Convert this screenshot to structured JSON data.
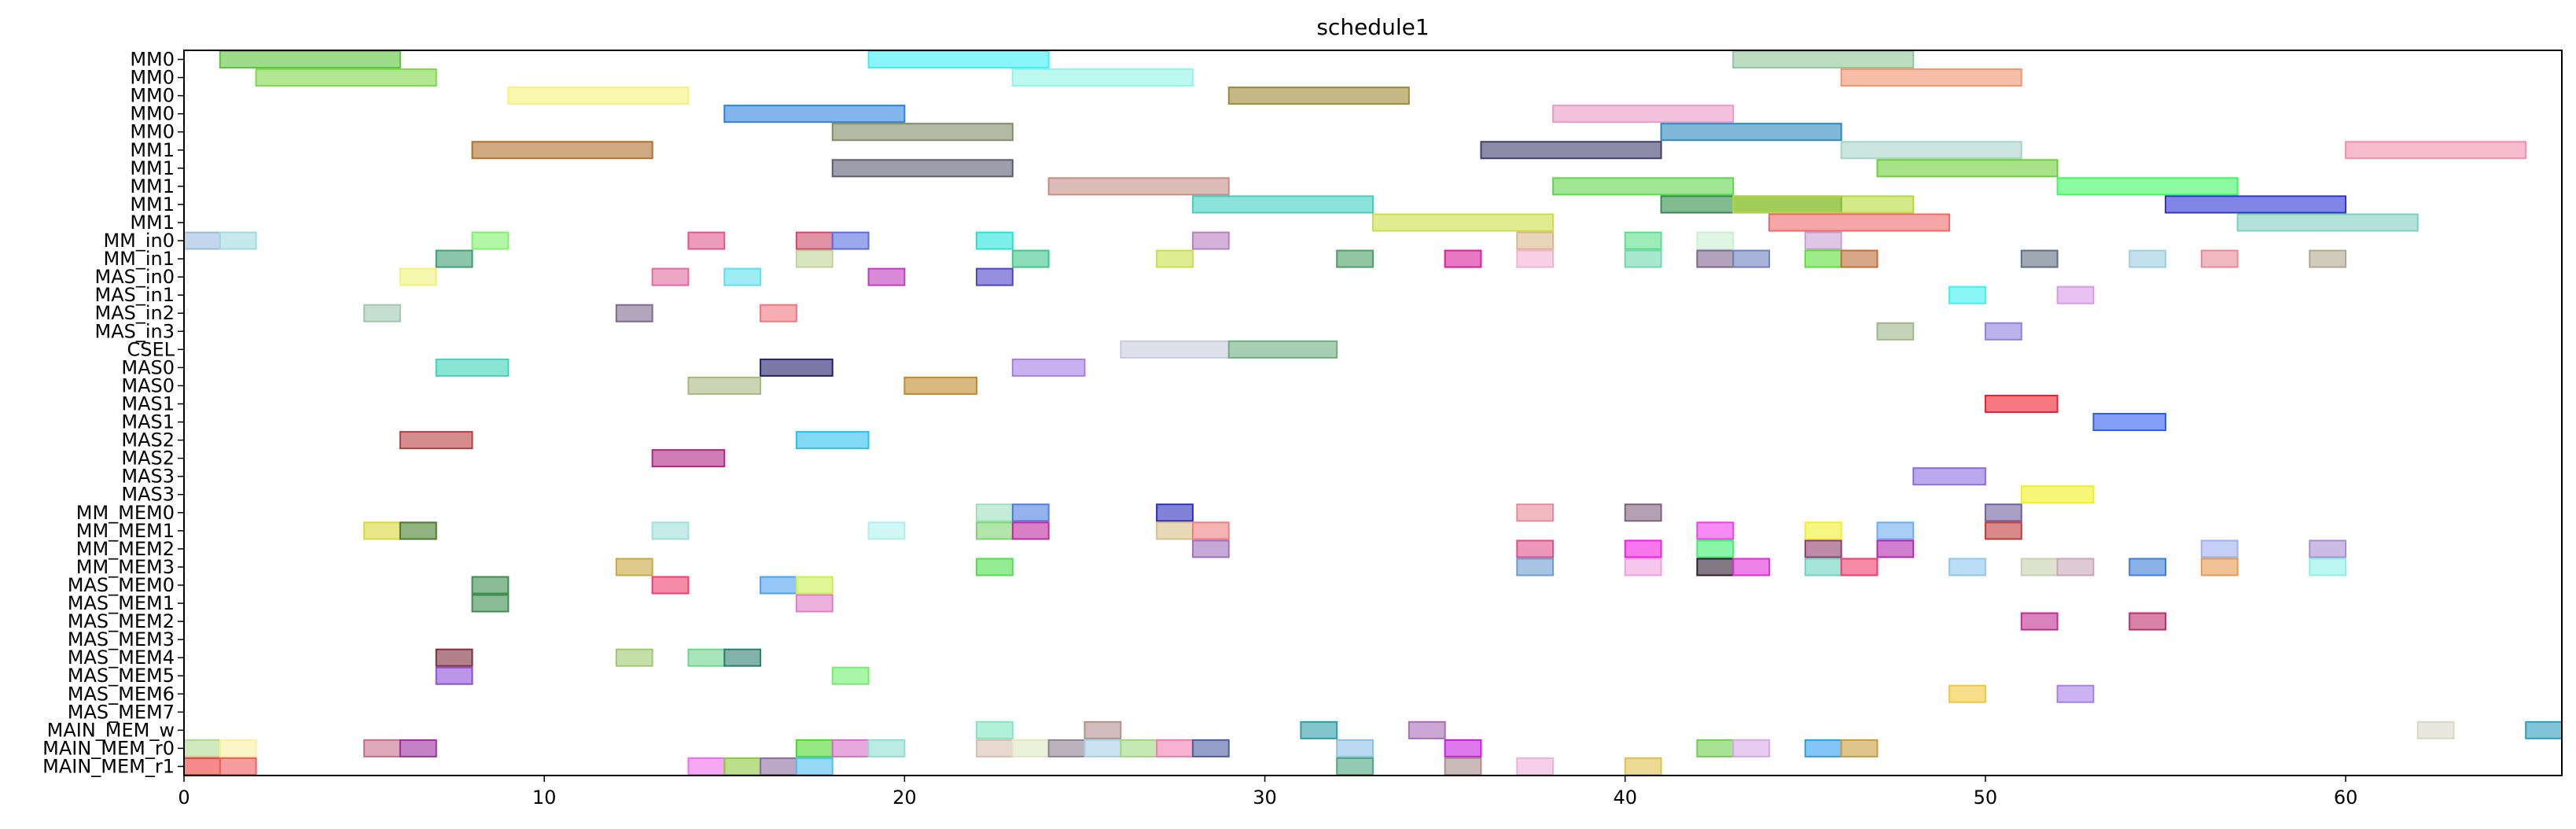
{
  "chart_data": {
    "type": "gantt",
    "title": "schedule1",
    "xlabel": "",
    "ylabel": "",
    "xlim": [
      0,
      66
    ],
    "x_ticks": [
      0,
      10,
      20,
      30,
      40,
      50,
      60
    ],
    "rows": [
      "MM0",
      "MM0",
      "MM0",
      "MM0",
      "MM0",
      "MM1",
      "MM1",
      "MM1",
      "MM1",
      "MM1",
      "MM_in0",
      "MM_in1",
      "MAS_in0",
      "MAS_in1",
      "MAS_in2",
      "MAS_in3",
      "CSEL",
      "MAS0",
      "MAS0",
      "MAS1",
      "MAS1",
      "MAS2",
      "MAS2",
      "MAS3",
      "MAS3",
      "MM_MEM0",
      "MM_MEM1",
      "MM_MEM2",
      "MM_MEM3",
      "MAS_MEM0",
      "MAS_MEM1",
      "MAS_MEM2",
      "MAS_MEM3",
      "MAS_MEM4",
      "MAS_MEM5",
      "MAS_MEM6",
      "MAS_MEM7",
      "MAIN_MEM_w",
      "MAIN_MEM_r0",
      "MAIN_MEM_r1"
    ],
    "bars": [
      {
        "row": 0,
        "start": 1,
        "end": 6,
        "color": "#5cc43c"
      },
      {
        "row": 0,
        "start": 19,
        "end": 24,
        "color": "#3ef0f5"
      },
      {
        "row": 0,
        "start": 43,
        "end": 48,
        "color": "#8fc79a"
      },
      {
        "row": 1,
        "start": 2,
        "end": 7,
        "color": "#7fd94a"
      },
      {
        "row": 1,
        "start": 23,
        "end": 28,
        "color": "#8ff5e8"
      },
      {
        "row": 1,
        "start": 46,
        "end": 51,
        "color": "#f2946e"
      },
      {
        "row": 2,
        "start": 9,
        "end": 14,
        "color": "#f7f27a"
      },
      {
        "row": 2,
        "start": 29,
        "end": 34,
        "color": "#9c8a35"
      },
      {
        "row": 3,
        "start": 15,
        "end": 20,
        "color": "#2e83dd"
      },
      {
        "row": 3,
        "start": 38,
        "end": 43,
        "color": "#e99ac7"
      },
      {
        "row": 4,
        "start": 18,
        "end": 23,
        "color": "#818c65"
      },
      {
        "row": 4,
        "start": 41,
        "end": 46,
        "color": "#2d88bf"
      },
      {
        "row": 5,
        "start": 8,
        "end": 13,
        "color": "#b0702b"
      },
      {
        "row": 5,
        "start": 36,
        "end": 41,
        "color": "#3f3d6e"
      },
      {
        "row": 5,
        "start": 46,
        "end": 51,
        "color": "#a6d4c8"
      },
      {
        "row": 5,
        "start": 60,
        "end": 65,
        "color": "#f08fae"
      },
      {
        "row": 6,
        "start": 18,
        "end": 23,
        "color": "#5e5c74"
      },
      {
        "row": 6,
        "start": 47,
        "end": 52,
        "color": "#6ccf3a"
      },
      {
        "row": 7,
        "start": 24,
        "end": 29,
        "color": "#c48f86"
      },
      {
        "row": 7,
        "start": 38,
        "end": 43,
        "color": "#60d64d"
      },
      {
        "row": 7,
        "start": 52,
        "end": 57,
        "color": "#3ef763"
      },
      {
        "row": 8,
        "start": 41,
        "end": 46,
        "color": "#2f8e4a"
      },
      {
        "row": 8,
        "start": 55,
        "end": 60,
        "color": "#2f34d8"
      },
      {
        "row": 8,
        "start": 28,
        "end": 33,
        "color": "#3fd1bf"
      },
      {
        "row": 8,
        "start": 43,
        "end": 48,
        "color": "#b6d937"
      },
      {
        "row": 9,
        "start": 33,
        "end": 38,
        "color": "#c9e04a"
      },
      {
        "row": 9,
        "start": 44,
        "end": 49,
        "color": "#f06a6a"
      },
      {
        "row": 9,
        "start": 57,
        "end": 62,
        "color": "#7fcfc0"
      },
      {
        "row": 10,
        "start": 0,
        "end": 1,
        "color": "#9bbbe0"
      },
      {
        "row": 10,
        "start": 1,
        "end": 2,
        "color": "#9edbe0"
      },
      {
        "row": 10,
        "start": 8,
        "end": 9,
        "color": "#7ef26a"
      },
      {
        "row": 10,
        "start": 14,
        "end": 15,
        "color": "#e0588e"
      },
      {
        "row": 10,
        "start": 17,
        "end": 18,
        "color": "#d14a6a"
      },
      {
        "row": 10,
        "start": 18,
        "end": 19,
        "color": "#5a6ee0"
      },
      {
        "row": 10,
        "start": 22,
        "end": 23,
        "color": "#26e3d8"
      },
      {
        "row": 10,
        "start": 28,
        "end": 29,
        "color": "#b97fc0"
      },
      {
        "row": 10,
        "start": 37,
        "end": 38,
        "color": "#d9b88a"
      },
      {
        "row": 10,
        "start": 40,
        "end": 41,
        "color": "#5de08a"
      },
      {
        "row": 10,
        "start": 42,
        "end": 43,
        "color": "#c9f0d4"
      },
      {
        "row": 10,
        "start": 45,
        "end": 46,
        "color": "#c8a0d2"
      },
      {
        "row": 11,
        "start": 7,
        "end": 8,
        "color": "#3e9e72"
      },
      {
        "row": 11,
        "start": 17,
        "end": 18,
        "color": "#c0d49a"
      },
      {
        "row": 11,
        "start": 23,
        "end": 24,
        "color": "#3fc78a"
      },
      {
        "row": 11,
        "start": 27,
        "end": 28,
        "color": "#c8e04a"
      },
      {
        "row": 11,
        "start": 32,
        "end": 33,
        "color": "#4aa065"
      },
      {
        "row": 11,
        "start": 35,
        "end": 36,
        "color": "#d91e9a"
      },
      {
        "row": 11,
        "start": 37,
        "end": 38,
        "color": "#f5b0d4"
      },
      {
        "row": 11,
        "start": 40,
        "end": 41,
        "color": "#6ed9b0"
      },
      {
        "row": 11,
        "start": 42,
        "end": 43,
        "color": "#806490"
      },
      {
        "row": 11,
        "start": 43,
        "end": 44,
        "color": "#7080c0"
      },
      {
        "row": 11,
        "start": 45,
        "end": 46,
        "color": "#5ee03a"
      },
      {
        "row": 11,
        "start": 46,
        "end": 47,
        "color": "#c06e3a"
      },
      {
        "row": 11,
        "start": 51,
        "end": 52,
        "color": "#607080"
      },
      {
        "row": 11,
        "start": 54,
        "end": 55,
        "color": "#9fcfe0"
      },
      {
        "row": 11,
        "start": 56,
        "end": 57,
        "color": "#e88a94"
      },
      {
        "row": 11,
        "start": 59,
        "end": 60,
        "color": "#b0a890"
      },
      {
        "row": 12,
        "start": 6,
        "end": 7,
        "color": "#f0f27a"
      },
      {
        "row": 12,
        "start": 13,
        "end": 14,
        "color": "#e26a9e"
      },
      {
        "row": 12,
        "start": 15,
        "end": 16,
        "color": "#5ee0f0"
      },
      {
        "row": 12,
        "start": 19,
        "end": 20,
        "color": "#bf3ec0"
      },
      {
        "row": 12,
        "start": 22,
        "end": 23,
        "color": "#4e46c8"
      },
      {
        "row": 13,
        "start": 49,
        "end": 50,
        "color": "#3ef0f0"
      },
      {
        "row": 13,
        "start": 52,
        "end": 53,
        "color": "#d99ae8"
      },
      {
        "row": 14,
        "start": 5,
        "end": 6,
        "color": "#a0c8b0"
      },
      {
        "row": 14,
        "start": 12,
        "end": 13,
        "color": "#7d6a8e"
      },
      {
        "row": 14,
        "start": 16,
        "end": 17,
        "color": "#f27880"
      },
      {
        "row": 15,
        "start": 47,
        "end": 48,
        "color": "#9fb88a"
      },
      {
        "row": 15,
        "start": 50,
        "end": 51,
        "color": "#8f80e0"
      },
      {
        "row": 16,
        "start": 26,
        "end": 29,
        "color": "#c9c9e0"
      },
      {
        "row": 16,
        "start": 29,
        "end": 32,
        "color": "#6eae80"
      },
      {
        "row": 17,
        "start": 7,
        "end": 9,
        "color": "#3ed4b8"
      },
      {
        "row": 17,
        "start": 16,
        "end": 18,
        "color": "#25206e"
      },
      {
        "row": 17,
        "start": 23,
        "end": 25,
        "color": "#a67ee8"
      },
      {
        "row": 18,
        "start": 14,
        "end": 16,
        "color": "#a8b881"
      },
      {
        "row": 18,
        "start": 20,
        "end": 22,
        "color": "#c08a2a"
      },
      {
        "row": 19,
        "start": 50,
        "end": 52,
        "color": "#f01e2e"
      },
      {
        "row": 20,
        "start": 53,
        "end": 55,
        "color": "#2e5ef0"
      },
      {
        "row": 21,
        "start": 6,
        "end": 8,
        "color": "#b84040"
      },
      {
        "row": 21,
        "start": 17,
        "end": 19,
        "color": "#2ec0f0"
      },
      {
        "row": 22,
        "start": 13,
        "end": 15,
        "color": "#b02680"
      },
      {
        "row": 23,
        "start": 48,
        "end": 50,
        "color": "#8a6ee0"
      },
      {
        "row": 24,
        "start": 51,
        "end": 53,
        "color": "#f0f01e"
      },
      {
        "row": 25,
        "start": 22,
        "end": 23,
        "color": "#9ee0c0"
      },
      {
        "row": 25,
        "start": 23,
        "end": 24,
        "color": "#4e7ee0"
      },
      {
        "row": 25,
        "start": 27,
        "end": 28,
        "color": "#2e2ec0"
      },
      {
        "row": 25,
        "start": 37,
        "end": 38,
        "color": "#e88a9a"
      },
      {
        "row": 25,
        "start": 40,
        "end": 41,
        "color": "#806080"
      },
      {
        "row": 25,
        "start": 50,
        "end": 51,
        "color": "#7060a0"
      },
      {
        "row": 26,
        "start": 5,
        "end": 6,
        "color": "#d8d83a"
      },
      {
        "row": 26,
        "start": 6,
        "end": 7,
        "color": "#4a7e2e"
      },
      {
        "row": 26,
        "start": 13,
        "end": 14,
        "color": "#9ee0d8"
      },
      {
        "row": 26,
        "start": 19,
        "end": 20,
        "color": "#b0f0f0"
      },
      {
        "row": 26,
        "start": 22,
        "end": 23,
        "color": "#7ed470"
      },
      {
        "row": 26,
        "start": 23,
        "end": 24,
        "color": "#c02aa0"
      },
      {
        "row": 26,
        "start": 27,
        "end": 28,
        "color": "#d8c08a"
      },
      {
        "row": 26,
        "start": 28,
        "end": 29,
        "color": "#f08080"
      },
      {
        "row": 26,
        "start": 42,
        "end": 43,
        "color": "#f23ef0"
      },
      {
        "row": 26,
        "start": 45,
        "end": 46,
        "color": "#f0f02e"
      },
      {
        "row": 26,
        "start": 47,
        "end": 48,
        "color": "#6eaef0"
      },
      {
        "row": 26,
        "start": 50,
        "end": 51,
        "color": "#c03a3a"
      },
      {
        "row": 27,
        "start": 28,
        "end": 29,
        "color": "#a070c0"
      },
      {
        "row": 27,
        "start": 37,
        "end": 38,
        "color": "#e0508a"
      },
      {
        "row": 27,
        "start": 40,
        "end": 41,
        "color": "#f01ee0"
      },
      {
        "row": 27,
        "start": 42,
        "end": 43,
        "color": "#3ef06e"
      },
      {
        "row": 27,
        "start": 45,
        "end": 46,
        "color": "#8e3e6e"
      },
      {
        "row": 27,
        "start": 47,
        "end": 48,
        "color": "#b02ab0"
      },
      {
        "row": 27,
        "start": 56,
        "end": 57,
        "color": "#a0b0f0"
      },
      {
        "row": 27,
        "start": 59,
        "end": 60,
        "color": "#a88ed4"
      },
      {
        "row": 28,
        "start": 12,
        "end": 13,
        "color": "#c8a840"
      },
      {
        "row": 28,
        "start": 22,
        "end": 23,
        "color": "#4ee04e"
      },
      {
        "row": 28,
        "start": 37,
        "end": 38,
        "color": "#6e9ed0"
      },
      {
        "row": 28,
        "start": 40,
        "end": 41,
        "color": "#f0a0e0"
      },
      {
        "row": 28,
        "start": 42,
        "end": 43,
        "color": "#2e1e2e"
      },
      {
        "row": 28,
        "start": 43,
        "end": 44,
        "color": "#e02ed8"
      },
      {
        "row": 28,
        "start": 45,
        "end": 46,
        "color": "#6ed4c0"
      },
      {
        "row": 28,
        "start": 46,
        "end": 47,
        "color": "#f03e6e"
      },
      {
        "row": 28,
        "start": 49,
        "end": 50,
        "color": "#8ec8f0"
      },
      {
        "row": 28,
        "start": 51,
        "end": 52,
        "color": "#c8d0b0"
      },
      {
        "row": 28,
        "start": 52,
        "end": 53,
        "color": "#c8a8b8"
      },
      {
        "row": 28,
        "start": 54,
        "end": 55,
        "color": "#3e7ed8"
      },
      {
        "row": 28,
        "start": 56,
        "end": 57,
        "color": "#e89a4e"
      },
      {
        "row": 28,
        "start": 59,
        "end": 60,
        "color": "#8ef0e8"
      },
      {
        "row": 29,
        "start": 8,
        "end": 9,
        "color": "#3e8e4e"
      },
      {
        "row": 29,
        "start": 13,
        "end": 14,
        "color": "#f03e6e"
      },
      {
        "row": 29,
        "start": 16,
        "end": 17,
        "color": "#4ea0f0"
      },
      {
        "row": 29,
        "start": 17,
        "end": 18,
        "color": "#c8f04e"
      },
      {
        "row": 30,
        "start": 8,
        "end": 9,
        "color": "#3e8e4e"
      },
      {
        "row": 30,
        "start": 17,
        "end": 18,
        "color": "#e07ec8"
      },
      {
        "row": 31,
        "start": 51,
        "end": 52,
        "color": "#c02e90"
      },
      {
        "row": 31,
        "start": 54,
        "end": 55,
        "color": "#c02e6e"
      },
      {
        "row": 33,
        "start": 7,
        "end": 8,
        "color": "#7e2e3e"
      },
      {
        "row": 33,
        "start": 12,
        "end": 13,
        "color": "#a0c870"
      },
      {
        "row": 33,
        "start": 14,
        "end": 15,
        "color": "#6ed48e"
      },
      {
        "row": 33,
        "start": 15,
        "end": 16,
        "color": "#2e7e6e"
      },
      {
        "row": 34,
        "start": 7,
        "end": 8,
        "color": "#8e4ed8"
      },
      {
        "row": 34,
        "start": 18,
        "end": 19,
        "color": "#6ef06e"
      },
      {
        "row": 35,
        "start": 49,
        "end": 50,
        "color": "#f0c83e"
      },
      {
        "row": 35,
        "start": 52,
        "end": 53,
        "color": "#a87ee8"
      },
      {
        "row": 37,
        "start": 22,
        "end": 23,
        "color": "#7ee8c0"
      },
      {
        "row": 37,
        "start": 25,
        "end": 26,
        "color": "#b0908e"
      },
      {
        "row": 37,
        "start": 31,
        "end": 32,
        "color": "#2e9ea8"
      },
      {
        "row": 37,
        "start": 34,
        "end": 35,
        "color": "#a86eb8"
      },
      {
        "row": 37,
        "start": 62,
        "end": 63,
        "color": "#d8d8c8"
      },
      {
        "row": 37,
        "start": 65,
        "end": 66,
        "color": "#2e9ec0"
      },
      {
        "row": 38,
        "start": 0,
        "end": 1,
        "color": "#b0d890"
      },
      {
        "row": 38,
        "start": 1,
        "end": 2,
        "color": "#f8f0a0"
      },
      {
        "row": 38,
        "start": 5,
        "end": 6,
        "color": "#c86e8e"
      },
      {
        "row": 38,
        "start": 6,
        "end": 7,
        "color": "#a02ea0"
      },
      {
        "row": 38,
        "start": 17,
        "end": 18,
        "color": "#4ed82e"
      },
      {
        "row": 38,
        "start": 18,
        "end": 19,
        "color": "#d86ec8"
      },
      {
        "row": 38,
        "start": 19,
        "end": 20,
        "color": "#8ee0d0"
      },
      {
        "row": 38,
        "start": 22,
        "end": 23,
        "color": "#d8c0b0"
      },
      {
        "row": 38,
        "start": 23,
        "end": 24,
        "color": "#e0e8c0"
      },
      {
        "row": 38,
        "start": 24,
        "end": 25,
        "color": "#8e8090"
      },
      {
        "row": 38,
        "start": 25,
        "end": 26,
        "color": "#a8d0e8"
      },
      {
        "row": 38,
        "start": 26,
        "end": 27,
        "color": "#a0d880"
      },
      {
        "row": 38,
        "start": 27,
        "end": 28,
        "color": "#f07eb0"
      },
      {
        "row": 38,
        "start": 28,
        "end": 29,
        "color": "#4e5ea0"
      },
      {
        "row": 38,
        "start": 32,
        "end": 33,
        "color": "#8ec0e8"
      },
      {
        "row": 38,
        "start": 35,
        "end": 36,
        "color": "#c81ee0"
      },
      {
        "row": 38,
        "start": 42,
        "end": 43,
        "color": "#6ed04e"
      },
      {
        "row": 38,
        "start": 43,
        "end": 44,
        "color": "#d8a8e8"
      },
      {
        "row": 38,
        "start": 45,
        "end": 46,
        "color": "#2e9ef0"
      },
      {
        "row": 38,
        "start": 46,
        "end": 47,
        "color": "#c89e3e"
      },
      {
        "row": 39,
        "start": 0,
        "end": 1,
        "color": "#f03e3e"
      },
      {
        "row": 39,
        "start": 1,
        "end": 2,
        "color": "#f05e5e"
      },
      {
        "row": 39,
        "start": 14,
        "end": 15,
        "color": "#f06ef0"
      },
      {
        "row": 39,
        "start": 15,
        "end": 16,
        "color": "#8ec83e"
      },
      {
        "row": 39,
        "start": 16,
        "end": 17,
        "color": "#8e6ea0"
      },
      {
        "row": 39,
        "start": 17,
        "end": 18,
        "color": "#4ec0f0"
      },
      {
        "row": 39,
        "start": 32,
        "end": 33,
        "color": "#4ea87e"
      },
      {
        "row": 39,
        "start": 35,
        "end": 36,
        "color": "#a88e8e"
      },
      {
        "row": 39,
        "start": 37,
        "end": 38,
        "color": "#f0b0d8"
      },
      {
        "row": 39,
        "start": 40,
        "end": 41,
        "color": "#e0c04e"
      }
    ]
  }
}
